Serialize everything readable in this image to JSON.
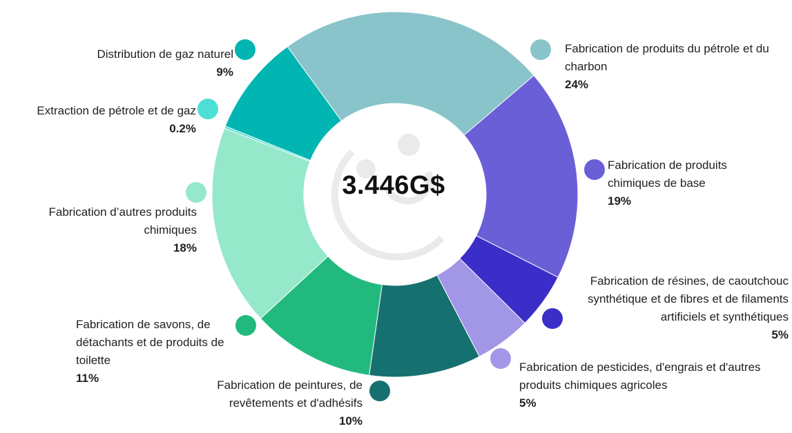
{
  "chart_data": {
    "type": "pie",
    "center_label": "3.446G$",
    "slices": [
      {
        "label": "Fabrication de produits du pétrole et du charbon",
        "value_label": "24%",
        "value": 24,
        "color": "#88c4c9"
      },
      {
        "label": "Fabrication de produits chimiques de base",
        "value_label": "19%",
        "value": 19,
        "color": "#6b5fd8"
      },
      {
        "label": "Fabrication de résines, de caoutchouc synthétique et de fibres et de filaments artificiels et synthétiques",
        "value_label": "5%",
        "value": 5,
        "color": "#3b2ec8"
      },
      {
        "label": "Fabrication de pesticides, d'engrais et d'autres produits chimiques agricoles",
        "value_label": "5%",
        "value": 5,
        "color": "#a297e6"
      },
      {
        "label": "Fabrication de peintures, de revêtements et d'adhésifs",
        "value_label": "10%",
        "value": 10,
        "color": "#167070"
      },
      {
        "label": "Fabrication de savons, de détachants et de produits de toilette",
        "value_label": "11%",
        "value": 11,
        "color": "#22b97f"
      },
      {
        "label": "Fabrication d’autres produits chimiques",
        "value_label": "18%",
        "value": 18,
        "color": "#96e8cb"
      },
      {
        "label": "Extraction de pétrole et de gaz",
        "value_label": "0.2%",
        "value": 0.2,
        "color": "#4cdfd6"
      },
      {
        "label": "Distribution de gaz naturel",
        "value_label": "9%",
        "value": 9,
        "color": "#00b5b2"
      }
    ]
  }
}
